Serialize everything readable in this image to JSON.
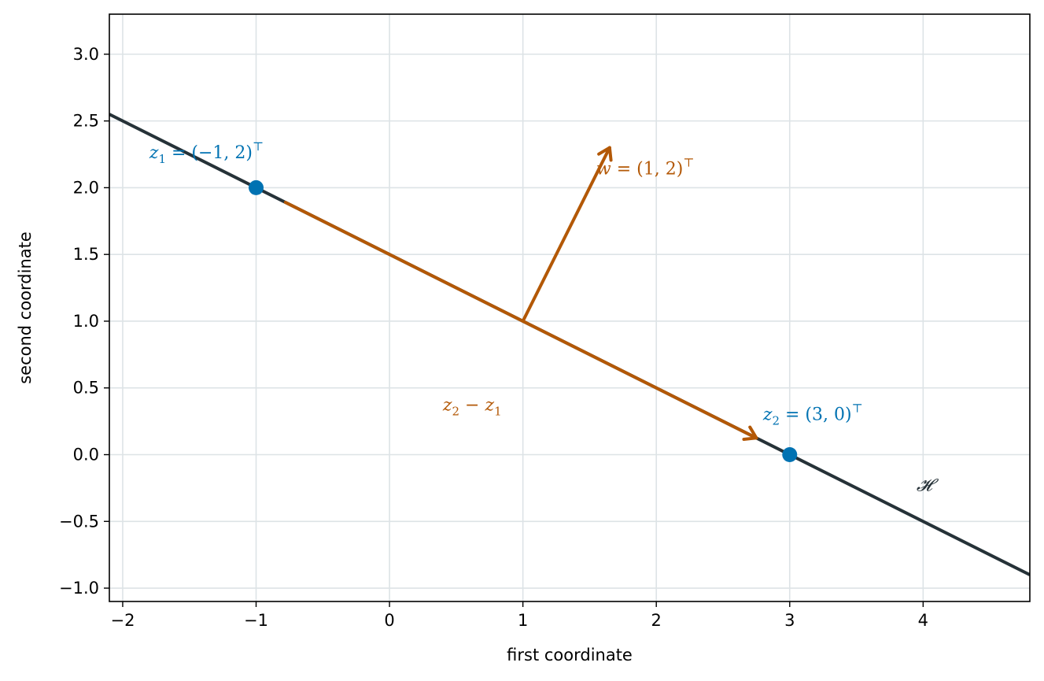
{
  "chart_data": {
    "type": "line",
    "xlabel": "first coordinate",
    "ylabel": "second coordinate",
    "xlim": [
      -2.1,
      4.8
    ],
    "ylim": [
      -1.1,
      3.3
    ],
    "x_ticks": [
      -2,
      -1,
      0,
      1,
      2,
      3,
      4
    ],
    "x_tick_labels": [
      "−2",
      "−1",
      "0",
      "1",
      "2",
      "3",
      "4"
    ],
    "y_ticks": [
      -1.0,
      -0.5,
      0.0,
      0.5,
      1.0,
      1.5,
      2.0,
      2.5,
      3.0
    ],
    "y_tick_labels": [
      "−1.0",
      "−0.5",
      "0.0",
      "0.5",
      "1.0",
      "1.5",
      "2.0",
      "2.5",
      "3.0"
    ],
    "grid": true,
    "colors": {
      "line": "#263238",
      "point": "#0072b2",
      "vector": "#b35806",
      "grid": "#dde3e6"
    },
    "hyperplane": {
      "label": "𝓗",
      "label_at": [
        3.95,
        -0.27
      ],
      "x": [
        -2.1,
        4.8
      ],
      "y": [
        2.55,
        -0.9
      ]
    },
    "points": [
      {
        "name": "z1",
        "x": -1,
        "y": 2,
        "label": {
          "base": "z",
          "sub": "1",
          "rest": " = (−1, 2)",
          "sup": "⊤"
        },
        "label_at": [
          -1.8,
          2.22
        ]
      },
      {
        "name": "z2",
        "x": 3,
        "y": 0,
        "label": {
          "base": "z",
          "sub": "2",
          "rest": " = (3, 0)",
          "sup": "⊤"
        },
        "label_at": [
          2.8,
          0.26
        ]
      }
    ],
    "vectors": [
      {
        "name": "w",
        "from": [
          1,
          1
        ],
        "to": [
          1.65,
          2.3
        ],
        "label": {
          "base": "w",
          "sub": "",
          "rest": " = (1, 2)",
          "sup": "⊤"
        },
        "label_at": [
          1.55,
          2.1
        ]
      },
      {
        "name": "z2-minus-z1",
        "from": [
          -0.78,
          1.89
        ],
        "to": [
          2.75,
          0.125
        ],
        "label": {
          "base": "z",
          "sub": "2",
          "rest": " − z",
          "sub2": "1",
          "sup": ""
        },
        "label_at": [
          0.4,
          0.33
        ]
      }
    ]
  }
}
